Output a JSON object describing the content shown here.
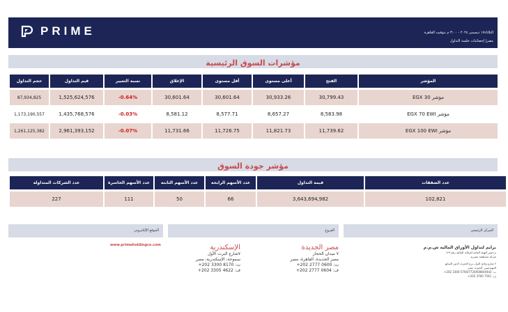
{
  "header": {
    "brand": "PRIME",
    "date_line": "الثلاثاء١٧ ديسمبر ٢٠٢٤ - ٣:٠٠ م بتوقيت القاهرة",
    "sub_line": "مصر| إحصائيات جلسة التداول",
    "logo_icon": "prime-logo-icon"
  },
  "main_indices": {
    "title": "مؤشرات السوق الرئيسية",
    "columns": [
      "المؤشر",
      "الفتح",
      "أعلى مستوى",
      "أقل مستوى",
      "الإغلاق",
      "نسبة التغيير",
      "قيم التداول",
      "حجم التداول"
    ],
    "rows": [
      {
        "name": "مؤشر EGX 30",
        "open": "30,799.43",
        "high": "30,933.26",
        "low": "30,601.64",
        "close": "30,601.64",
        "change": "-0.64%",
        "value": "1,525,624,576",
        "volume": "87,934,825"
      },
      {
        "name": "مؤشر EGX 70 EWI",
        "open": "8,583.98",
        "high": "8,657.27",
        "low": "8,577.71",
        "close": "8,581.12",
        "change": "-0.03%",
        "value": "1,435,768,576",
        "volume": "1,173,190,557"
      },
      {
        "name": "مؤشر EGX 100 EWI",
        "open": "11,739.62",
        "high": "11,821.73",
        "low": "11,726.75",
        "close": "11,731.66",
        "change": "-0.07%",
        "value": "2,961,393,152",
        "volume": "1,261,125,382"
      }
    ]
  },
  "quality": {
    "title": "مؤشر جودة السوق",
    "columns": [
      "عدد الصفقات",
      "قيمة التداول",
      "عدد الأسهم الرابحة",
      "عدد الأسهم الثابتة",
      "عدد الأسهم الخاسرة",
      "عدد الشركات المتداولة"
    ],
    "values": [
      "102,821",
      "3,643,694,982",
      "66",
      "50",
      "111",
      "227"
    ]
  },
  "footer": {
    "hq_head": "المركز الرئيسي",
    "branches_head": "الفروع",
    "web_head": "الموقع الإلكتروني",
    "hq_company": "برايم لتداول الأوراق المالية ش.م.م",
    "hq_license": "ترخيص الهيئة العامة للرقابة المالية رقم ١٧٩",
    "hq_type": "شركة مساهمة مصرية",
    "hq_addr1": "٢ شارع وادي النيل، برج الجيزة، الدور السابع",
    "hq_addr2": "المهندسين، الجيزة، مصر",
    "hq_phone": "ت: 5700/7720/6080/4442 3300 202+",
    "hq_fax": "ف: 7541 3760 202+",
    "b1_title": "مصر الجديدة",
    "b1_addr1": "٧ ميدان الحجاز",
    "b1_addr2": "مصر الجديدة، القاهرة، مصر",
    "b1_phone": "ت: 0600 2777 202+",
    "b1_fax": "ف: 0604 2777 202+",
    "b2_title": "الإسكندرية",
    "b2_addr1": "٧شارع البرت الأول",
    "b2_addr2": "سموحة، الإسكندرية، مصر",
    "b2_phone": "ت: 8170 3300 202+",
    "b2_fax": "ف: 4622 3305 202+",
    "website": "www.primeholdingco.com"
  }
}
